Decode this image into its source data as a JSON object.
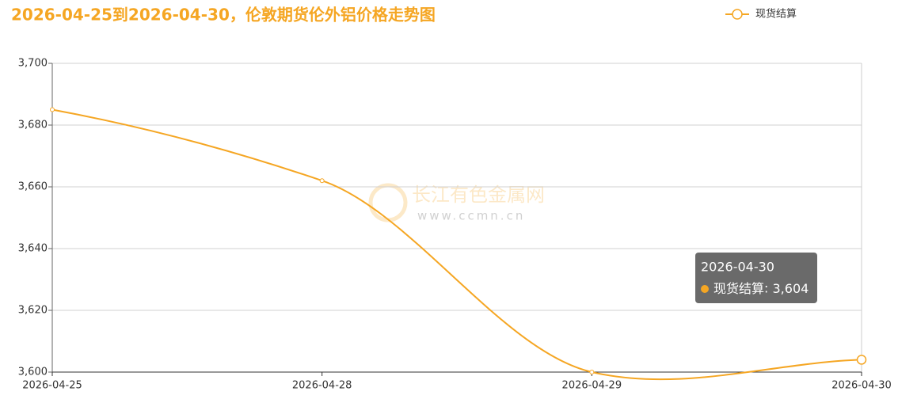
{
  "chart_data": {
    "type": "line",
    "title": "2026-04-25到2026-04-30，伦敦期货伦外铝价格走势图",
    "categories": [
      "2026-04-25",
      "2026-04-28",
      "2026-04-29",
      "2026-04-30"
    ],
    "series": [
      {
        "name": "现货结算",
        "color": "#f5a623",
        "values": [
          3685,
          3662,
          3600,
          3604
        ],
        "value_labels": [
          null,
          null,
          null,
          "3,604"
        ]
      }
    ],
    "ylim": [
      3600,
      3700
    ],
    "yticks": [
      {
        "value": 3600,
        "label": "3,600"
      },
      {
        "value": 3620,
        "label": "3,620"
      },
      {
        "value": 3640,
        "label": "3,640"
      },
      {
        "value": 3660,
        "label": "3,660"
      },
      {
        "value": 3680,
        "label": "3,680"
      },
      {
        "value": 3700,
        "label": "3,700"
      }
    ],
    "grid": true,
    "smooth": true,
    "legend": "top-right",
    "watermark": {
      "name": "长江有色金属网",
      "url": "www.ccmn.cn"
    },
    "tooltip_index": 3
  }
}
